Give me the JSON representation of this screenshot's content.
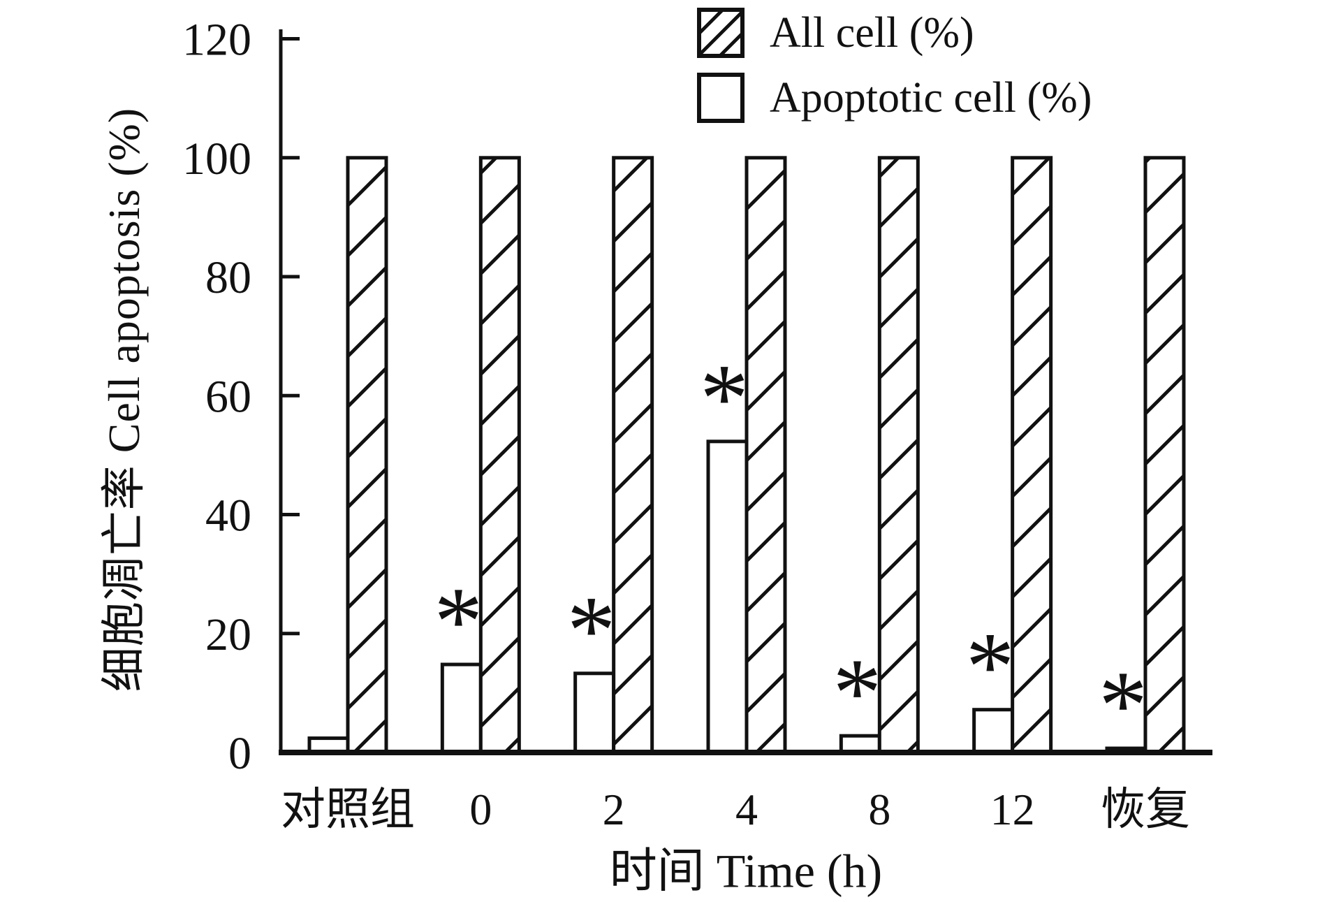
{
  "figure": {
    "background_color": "#ffffff",
    "ink_color": "#111111"
  },
  "legend": [
    {
      "label": "All cell (%)",
      "swatch": "hatched-box-icon"
    },
    {
      "label": "Apoptotic cell (%)",
      "swatch": "open-box-icon"
    }
  ],
  "chart_data": {
    "type": "bar",
    "title": "",
    "categories": [
      "对照组",
      "0",
      "2",
      "4",
      "8",
      "12",
      "恢复"
    ],
    "series": [
      {
        "name": "Apoptotic cell (%)",
        "style": "open",
        "values": [
          2.4,
          14.8,
          13.3,
          52.3,
          2.8,
          7.2,
          0.7
        ]
      },
      {
        "name": "All cell (%)",
        "style": "hatched",
        "values": [
          100,
          100,
          100,
          100,
          100,
          100,
          100
        ]
      }
    ],
    "significance_marker": "*",
    "significant": [
      false,
      true,
      true,
      true,
      true,
      true,
      true
    ],
    "xlabel": "时间 Time (h)",
    "ylabel": "细胞凋亡率 Cell apoptosis (%)",
    "ylim": [
      0,
      120
    ],
    "yticks": [
      0,
      20,
      40,
      60,
      80,
      100,
      120
    ],
    "grid": false,
    "legend_position": "top-right"
  }
}
